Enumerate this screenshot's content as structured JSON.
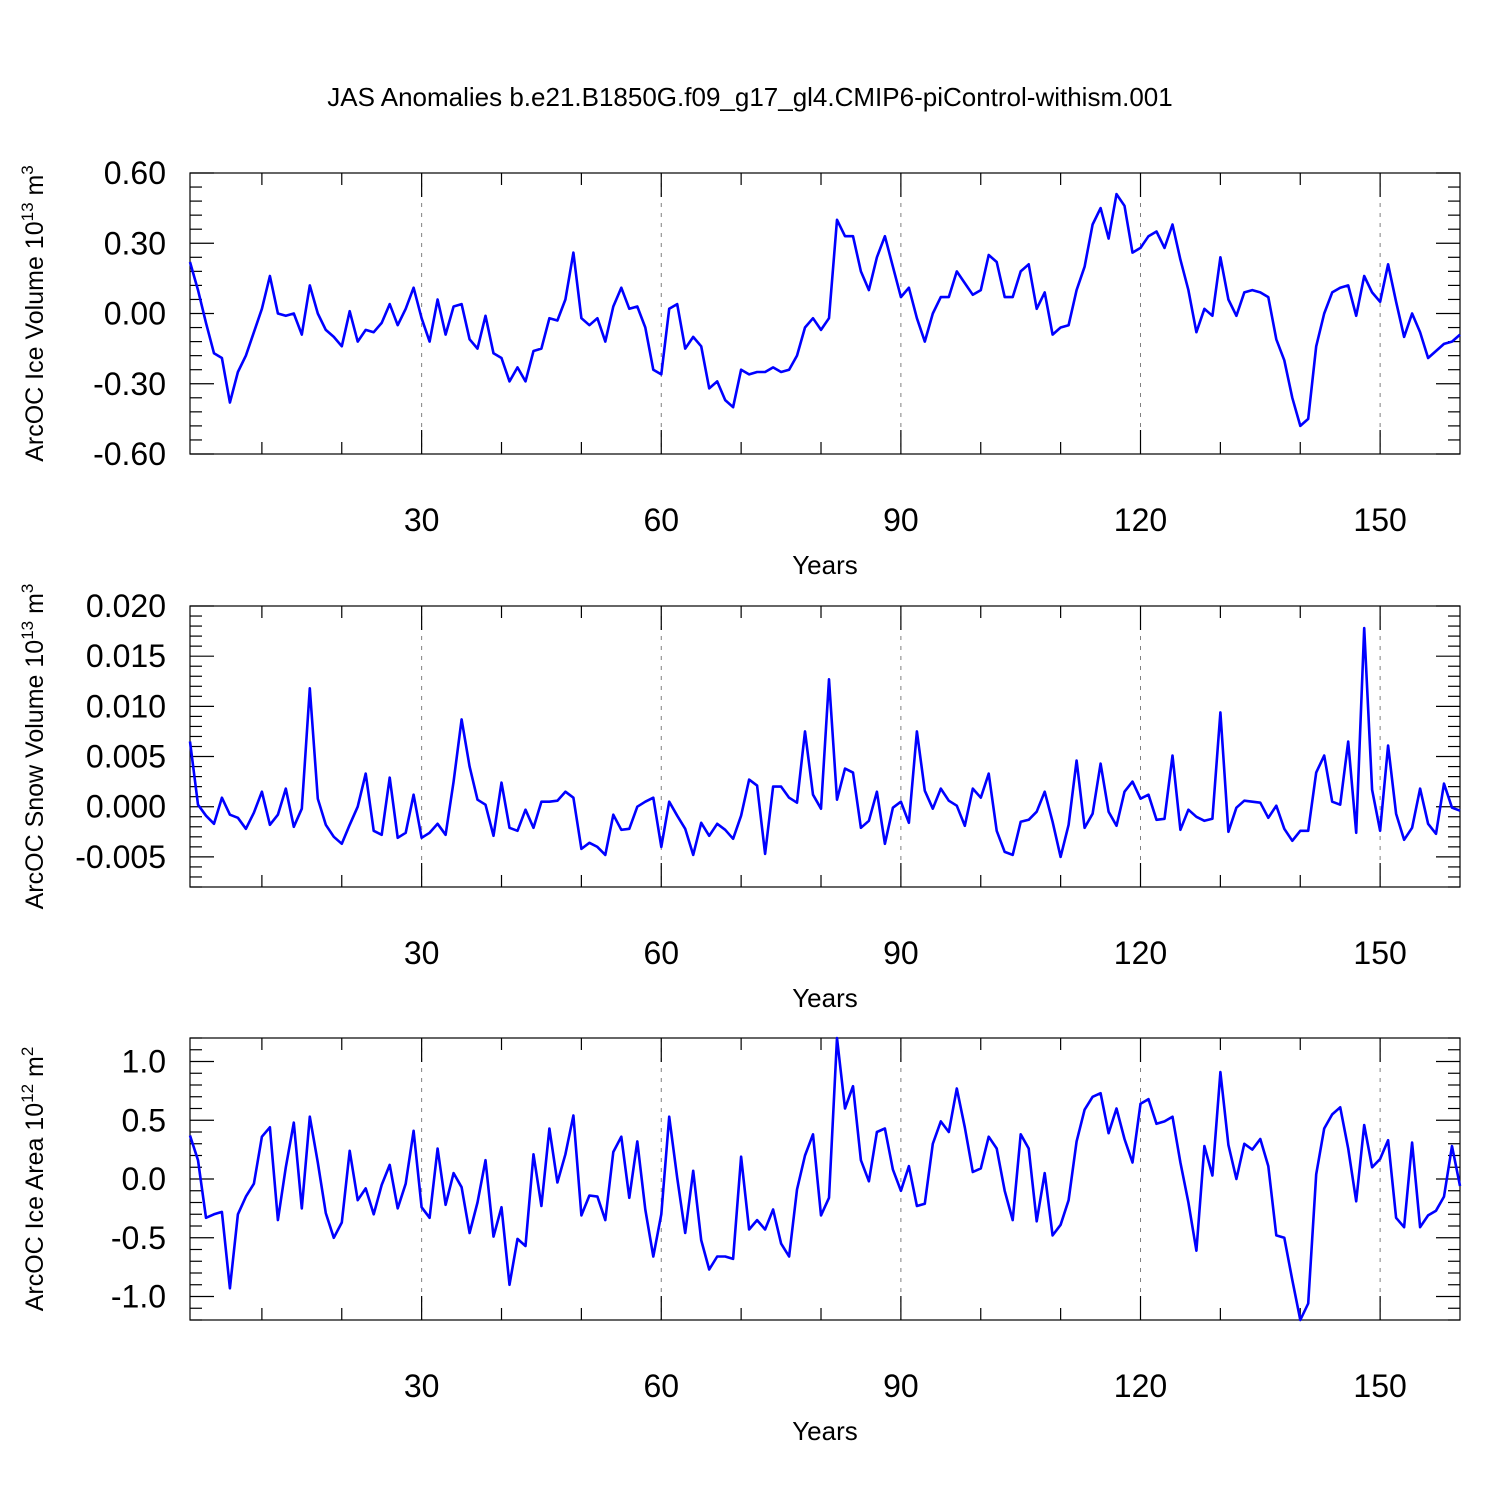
{
  "figure_title": "JAS Anomalies b.e21.B1850G.f09_g17_gl4.CMIP6-piControl-withism.001",
  "colors": {
    "line": "#0000ff",
    "grid": "#808080",
    "axes": "#000000"
  },
  "chart_data": [
    {
      "type": "line",
      "panel": "ice-volume",
      "ylabel_main": "ArcOC Ice Volume 10",
      "ylabel_exp": "13",
      "ylabel_unit": " m",
      "ylabel_unit_exp": "3",
      "xlabel": "Years",
      "xlim": [
        1,
        160
      ],
      "ylim": [
        -0.6,
        0.6
      ],
      "xticks": [
        30,
        60,
        90,
        120,
        150
      ],
      "xtick_labels": [
        "30",
        "60",
        "90",
        "120",
        "150"
      ],
      "yticks": [
        -0.6,
        -0.3,
        0.0,
        0.3,
        0.6
      ],
      "ytick_labels": [
        "-0.60",
        "-0.30",
        "0.00",
        "0.30",
        "0.60"
      ],
      "y_minor_step": 0.06,
      "x_minor_step": 10,
      "grid": "vertical dashed at major x ticks",
      "series": [
        {
          "name": "ArcOC Ice Volume",
          "values": [
            0.22,
            0.1,
            -0.04,
            -0.17,
            -0.19,
            -0.38,
            -0.25,
            -0.18,
            -0.08,
            0.02,
            0.16,
            0.0,
            -0.01,
            0.0,
            -0.09,
            0.12,
            0.0,
            -0.07,
            -0.1,
            -0.14,
            0.01,
            -0.12,
            -0.07,
            -0.08,
            -0.04,
            0.04,
            -0.05,
            0.02,
            0.11,
            -0.02,
            -0.12,
            0.06,
            -0.09,
            0.03,
            0.04,
            -0.11,
            -0.15,
            -0.01,
            -0.17,
            -0.19,
            -0.29,
            -0.23,
            -0.29,
            -0.16,
            -0.15,
            -0.02,
            -0.03,
            0.06,
            0.26,
            -0.02,
            -0.05,
            -0.02,
            -0.12,
            0.03,
            0.11,
            0.02,
            0.03,
            -0.06,
            -0.24,
            -0.26,
            0.02,
            0.04,
            -0.15,
            -0.1,
            -0.14,
            -0.32,
            -0.29,
            -0.37,
            -0.4,
            -0.24,
            -0.26,
            -0.25,
            -0.25,
            -0.23,
            -0.25,
            -0.24,
            -0.18,
            -0.06,
            -0.02,
            -0.07,
            -0.02,
            0.4,
            0.33,
            0.33,
            0.18,
            0.1,
            0.24,
            0.33,
            0.2,
            0.07,
            0.11,
            -0.02,
            -0.12,
            0.0,
            0.07,
            0.07,
            0.18,
            0.13,
            0.08,
            0.1,
            0.25,
            0.22,
            0.07,
            0.07,
            0.18,
            0.21,
            0.02,
            0.09,
            -0.09,
            -0.06,
            -0.05,
            0.1,
            0.2,
            0.38,
            0.45,
            0.32,
            0.51,
            0.46,
            0.26,
            0.28,
            0.33,
            0.35,
            0.28,
            0.38,
            0.23,
            0.1,
            -0.08,
            0.02,
            -0.01,
            0.24,
            0.06,
            -0.01,
            0.09,
            0.1,
            0.09,
            0.07,
            -0.11,
            -0.2,
            -0.36,
            -0.48,
            -0.45,
            -0.14,
            0.0,
            0.09,
            0.11,
            0.12,
            -0.01,
            0.16,
            0.09,
            0.05,
            0.21,
            0.05,
            -0.1,
            0.0,
            -0.08,
            -0.19,
            -0.16,
            -0.13,
            -0.12,
            -0.09
          ]
        }
      ]
    },
    {
      "type": "line",
      "panel": "snow-volume",
      "ylabel_main": "ArcOC Snow Volume 10",
      "ylabel_exp": "13",
      "ylabel_unit": " m",
      "ylabel_unit_exp": "3",
      "xlabel": "Years",
      "xlim": [
        1,
        160
      ],
      "ylim": [
        -0.008,
        0.02
      ],
      "xticks": [
        30,
        60,
        90,
        120,
        150
      ],
      "xtick_labels": [
        "30",
        "60",
        "90",
        "120",
        "150"
      ],
      "yticks": [
        -0.005,
        0.0,
        0.005,
        0.01,
        0.015,
        0.02
      ],
      "ytick_labels": [
        "-0.005",
        "0.000",
        "0.005",
        "0.010",
        "0.015",
        "0.020"
      ],
      "y_minor_step": 0.001,
      "x_minor_step": 10,
      "grid": "vertical dashed at major x ticks",
      "series": [
        {
          "name": "ArcOC Snow Volume",
          "values": [
            0.0065,
            0.0002,
            -0.0009,
            -0.0017,
            0.0009,
            -0.0008,
            -0.0011,
            -0.0022,
            -0.0006,
            0.0015,
            -0.0018,
            -0.0008,
            0.0018,
            -0.002,
            -0.0002,
            0.0118,
            0.0008,
            -0.0018,
            -0.003,
            -0.0037,
            -0.0018,
            0.0,
            0.0033,
            -0.0024,
            -0.0028,
            0.0029,
            -0.0031,
            -0.0026,
            0.0012,
            -0.0031,
            -0.0026,
            -0.0017,
            -0.0028,
            0.0025,
            0.0087,
            0.004,
            0.0007,
            0.0002,
            -0.0029,
            0.0024,
            -0.0021,
            -0.0024,
            -0.0003,
            -0.0021,
            0.0005,
            0.0005,
            0.0006,
            0.0015,
            0.0009,
            -0.0042,
            -0.0036,
            -0.004,
            -0.0048,
            -0.0008,
            -0.0023,
            -0.0022,
            0.0,
            0.0005,
            0.0009,
            -0.004,
            0.0005,
            -0.0009,
            -0.0022,
            -0.0048,
            -0.0016,
            -0.0029,
            -0.0017,
            -0.0023,
            -0.0032,
            -0.0009,
            0.0027,
            0.0021,
            -0.0047,
            0.002,
            0.002,
            0.0009,
            0.0004,
            0.0075,
            0.0012,
            -0.0002,
            0.0127,
            0.0007,
            0.0038,
            0.0034,
            -0.0021,
            -0.0014,
            0.0015,
            -0.0037,
            -0.0001,
            0.0005,
            -0.0016,
            0.0075,
            0.0016,
            -0.0002,
            0.0018,
            0.0006,
            0.0001,
            -0.0019,
            0.0018,
            0.0009,
            0.0033,
            -0.0024,
            -0.0045,
            -0.0048,
            -0.0015,
            -0.0013,
            -0.0005,
            0.0015,
            -0.0015,
            -0.005,
            -0.0018,
            0.0046,
            -0.0021,
            -0.0007,
            0.0043,
            -0.0005,
            -0.0019,
            0.0015,
            0.0025,
            0.0008,
            0.0012,
            -0.0013,
            -0.0012,
            0.0051,
            -0.0023,
            -0.0003,
            -0.001,
            -0.0014,
            -0.0012,
            0.0094,
            -0.0025,
            -0.0001,
            0.0006,
            0.0005,
            0.0004,
            -0.0011,
            0.0001,
            -0.0022,
            -0.0034,
            -0.0024,
            -0.0024,
            0.0034,
            0.0051,
            0.0005,
            0.0002,
            0.0065,
            -0.0026,
            0.0178,
            0.0017,
            -0.0024,
            0.0061,
            -0.0007,
            -0.0033,
            -0.0021,
            0.0018,
            -0.0017,
            -0.0027,
            0.0023,
            -0.0001,
            -0.0004
          ]
        }
      ]
    },
    {
      "type": "line",
      "panel": "ice-area",
      "ylabel_main": "ArcOC Ice Area 10",
      "ylabel_exp": "12",
      "ylabel_unit": " m",
      "ylabel_unit_exp": "2",
      "xlabel": "Years",
      "xlim": [
        1,
        160
      ],
      "ylim": [
        -1.2,
        1.2
      ],
      "xticks": [
        30,
        60,
        90,
        120,
        150
      ],
      "xtick_labels": [
        "30",
        "60",
        "90",
        "120",
        "150"
      ],
      "yticks": [
        -1.0,
        -0.5,
        0.0,
        0.5,
        1.0
      ],
      "ytick_labels": [
        "-1.0",
        "-0.5",
        "0.0",
        "0.5",
        "1.0"
      ],
      "y_minor_step": 0.1,
      "x_minor_step": 10,
      "grid": "vertical dashed at major x ticks",
      "series": [
        {
          "name": "ArcOC Ice Area",
          "values": [
            0.37,
            0.16,
            -0.33,
            -0.3,
            -0.28,
            -0.93,
            -0.3,
            -0.15,
            -0.04,
            0.36,
            0.44,
            -0.35,
            0.1,
            0.48,
            -0.25,
            0.53,
            0.14,
            -0.29,
            -0.5,
            -0.37,
            0.24,
            -0.18,
            -0.08,
            -0.3,
            -0.05,
            0.12,
            -0.25,
            -0.04,
            0.41,
            -0.24,
            -0.33,
            0.26,
            -0.22,
            0.05,
            -0.07,
            -0.46,
            -0.2,
            0.16,
            -0.49,
            -0.24,
            -0.9,
            -0.51,
            -0.57,
            0.21,
            -0.23,
            0.43,
            -0.03,
            0.21,
            0.54,
            -0.31,
            -0.14,
            -0.15,
            -0.35,
            0.23,
            0.36,
            -0.16,
            0.32,
            -0.26,
            -0.66,
            -0.3,
            0.53,
            0.01,
            -0.46,
            0.07,
            -0.52,
            -0.77,
            -0.66,
            -0.66,
            -0.68,
            0.19,
            -0.43,
            -0.35,
            -0.43,
            -0.26,
            -0.55,
            -0.66,
            -0.09,
            0.2,
            0.38,
            -0.31,
            -0.16,
            1.2,
            0.6,
            0.79,
            0.16,
            -0.02,
            0.4,
            0.43,
            0.08,
            -0.1,
            0.11,
            -0.23,
            -0.21,
            0.3,
            0.49,
            0.4,
            0.77,
            0.44,
            0.06,
            0.09,
            0.36,
            0.26,
            -0.1,
            -0.35,
            0.38,
            0.26,
            -0.36,
            0.05,
            -0.48,
            -0.39,
            -0.18,
            0.32,
            0.59,
            0.7,
            0.73,
            0.39,
            0.6,
            0.34,
            0.14,
            0.64,
            0.68,
            0.47,
            0.49,
            0.53,
            0.14,
            -0.2,
            -0.61,
            0.28,
            0.03,
            0.91,
            0.29,
            0.0,
            0.3,
            0.25,
            0.34,
            0.11,
            -0.48,
            -0.5,
            -0.86,
            -1.2,
            -1.06,
            0.04,
            0.43,
            0.55,
            0.61,
            0.26,
            -0.19,
            0.46,
            0.1,
            0.17,
            0.33,
            -0.33,
            -0.41,
            0.31,
            -0.41,
            -0.31,
            -0.27,
            -0.15,
            0.28,
            -0.06
          ]
        }
      ]
    }
  ]
}
